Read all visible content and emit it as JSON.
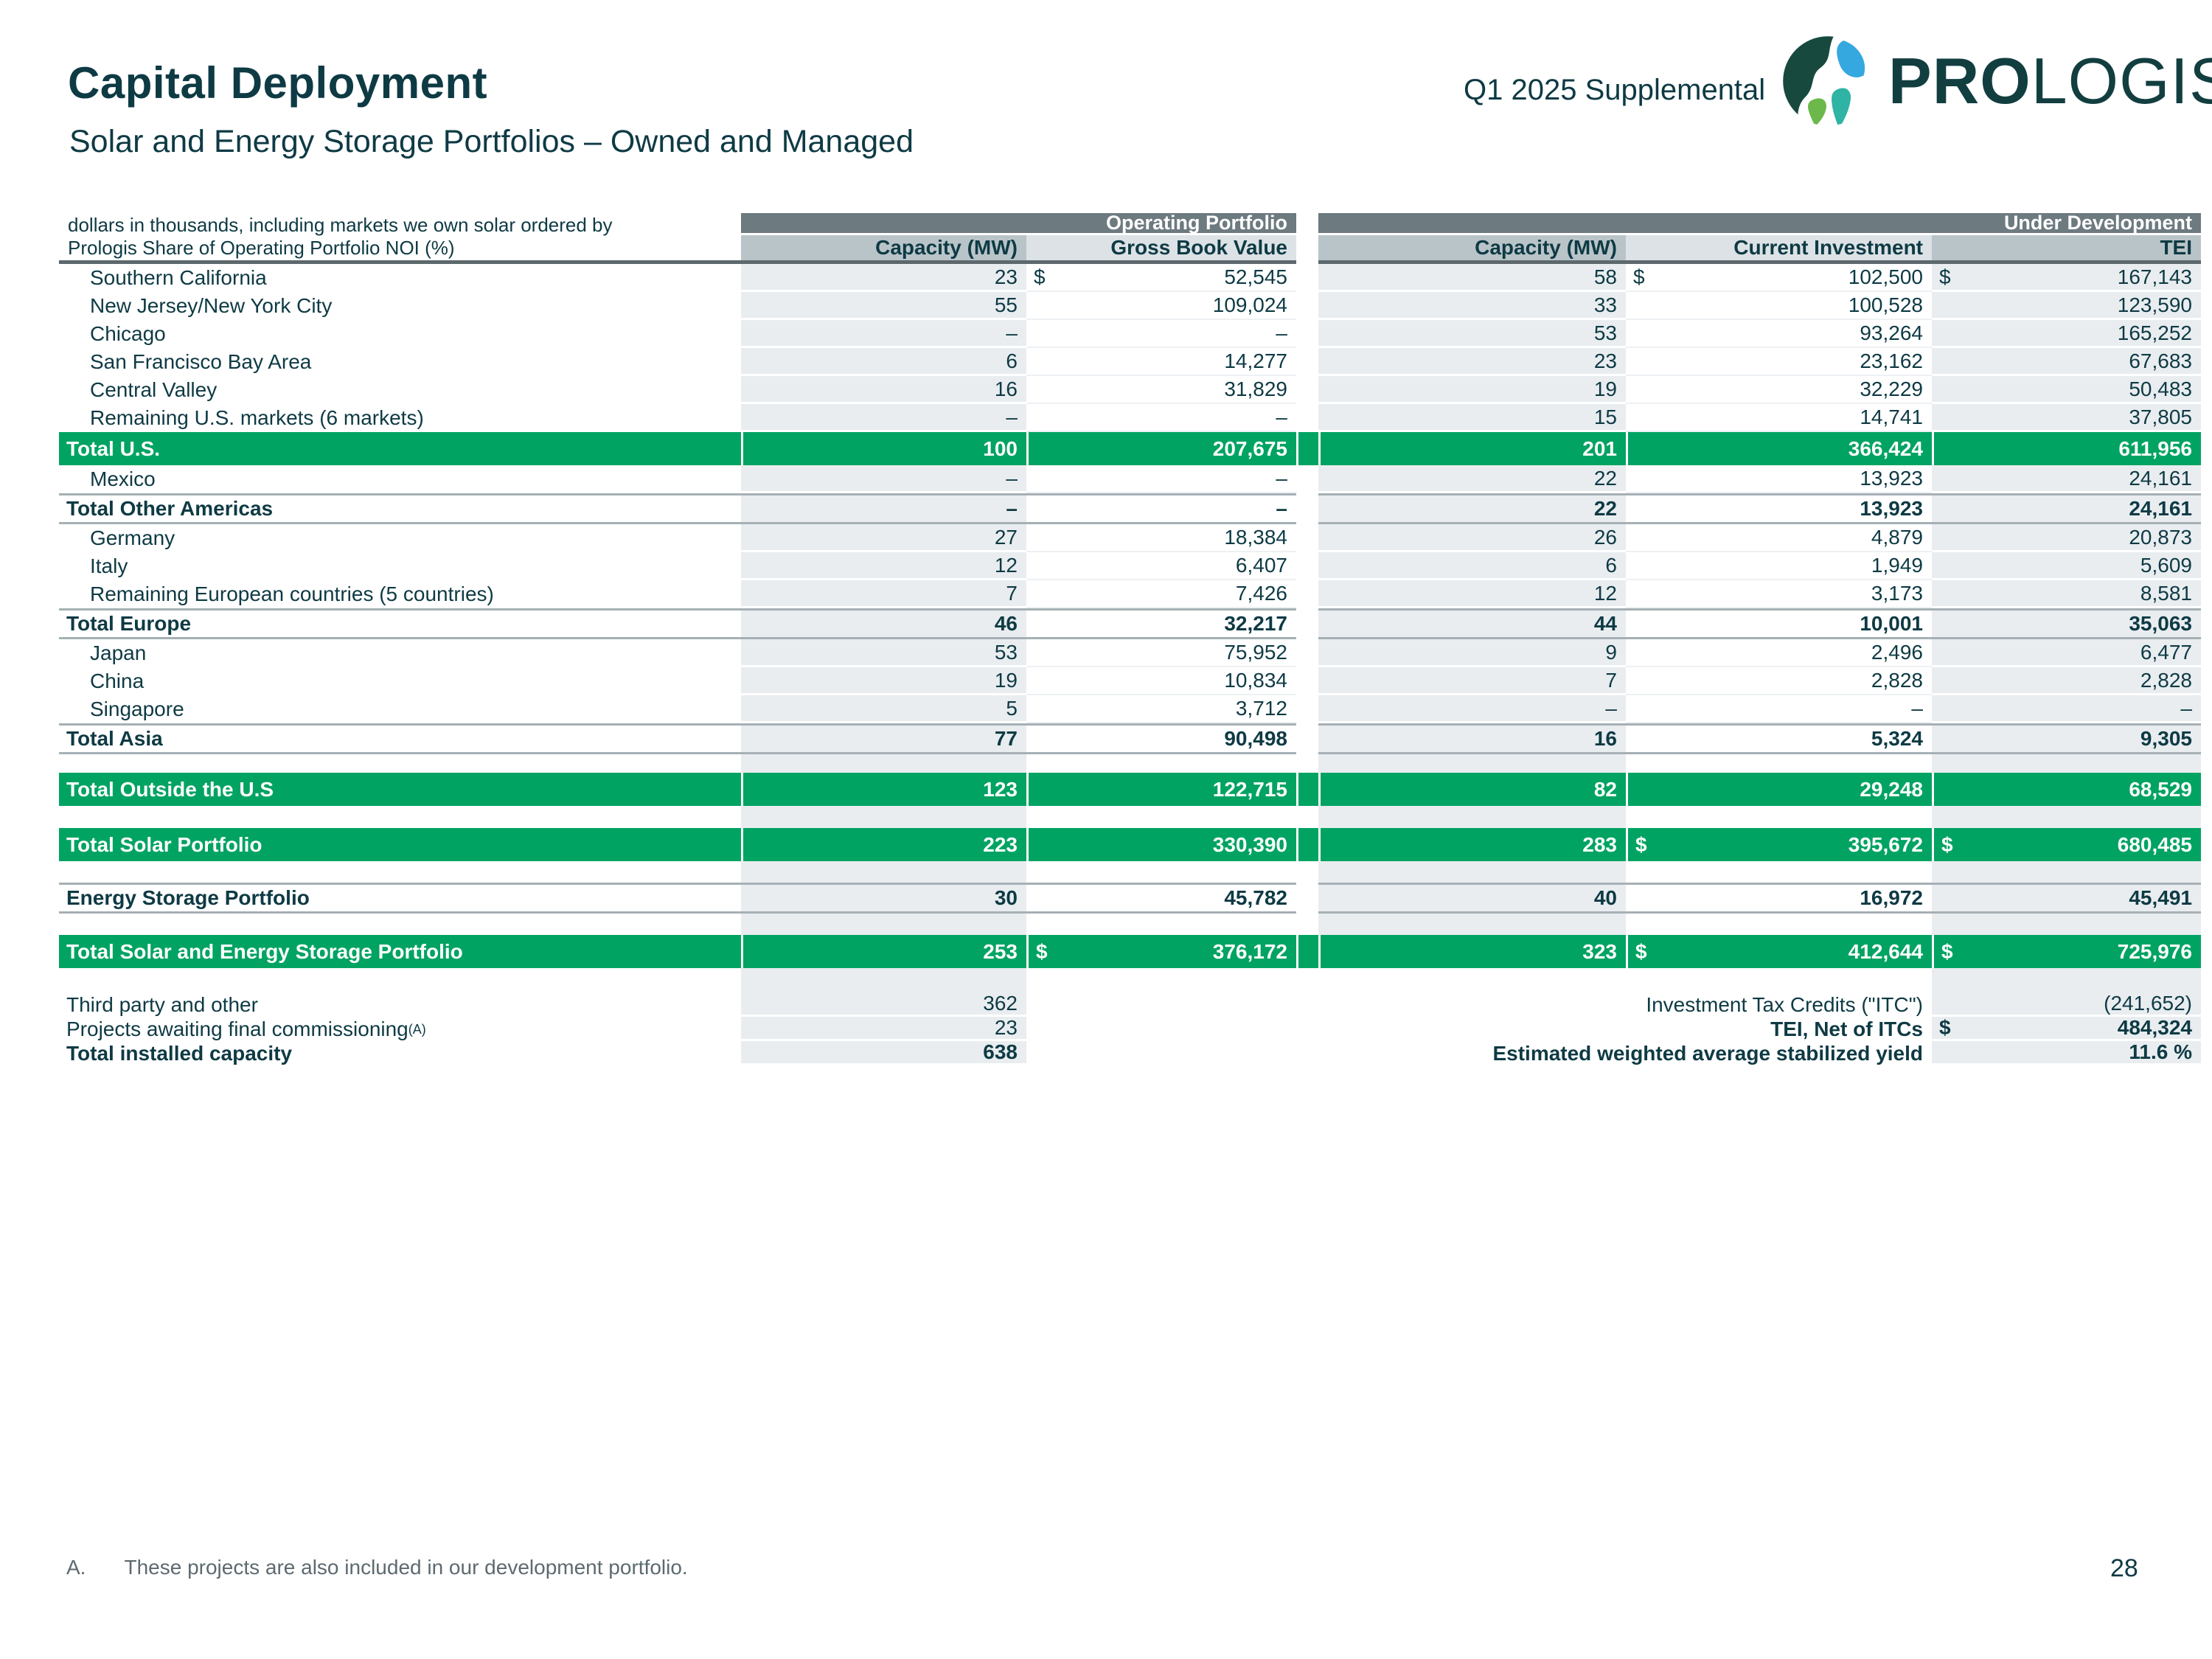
{
  "page": {
    "title": "Capital Deployment",
    "subtitle": "Solar and Energy Storage Portfolios – Owned and Managed",
    "edition": "Q1 2025 Supplemental",
    "brand": {
      "pro": "PRO",
      "logis": "LOGIS",
      "reg": "®"
    },
    "page_number": "28",
    "footnote_marker": "A.",
    "footnote_text": "These projects are also included in our development portfolio."
  },
  "colors": {
    "accent_green": "#00a362",
    "dark_teal_text": "#0e3a44",
    "group_band_gray": "#6d7a80",
    "subheader_gray": "#b9c4c9",
    "subheader_light": "#dce2e5",
    "column_shade": "#e9edf0",
    "rule_gray": "#a6b0b5",
    "logo_blue": "#35a8e0",
    "logo_green": "#6cb84a",
    "logo_teal": "#2fb3a4",
    "logo_dark": "#17493f"
  },
  "table": {
    "note_line1": "dollars in thousands, including markets we own solar ordered by",
    "note_line2": "Prologis Share of Operating Portfolio NOI (%)",
    "groups": [
      {
        "label": "Operating Portfolio"
      },
      {
        "label": "Under Development"
      }
    ],
    "columns": [
      "Capacity (MW)",
      "Gross Book Value",
      "Capacity (MW)",
      "Current Investment",
      "TEI"
    ],
    "rows": [
      {
        "type": "data",
        "label": "Southern California",
        "values": [
          "23",
          "52,545",
          "58",
          "102,500",
          "167,143"
        ],
        "dollars": [
          false,
          true,
          false,
          true,
          true
        ]
      },
      {
        "type": "data",
        "label": "New Jersey/New York City",
        "values": [
          "55",
          "109,024",
          "33",
          "100,528",
          "123,590"
        ]
      },
      {
        "type": "data",
        "label": "Chicago",
        "values": [
          "–",
          "–",
          "53",
          "93,264",
          "165,252"
        ]
      },
      {
        "type": "data",
        "label": "San Francisco Bay Area",
        "values": [
          "6",
          "14,277",
          "23",
          "23,162",
          "67,683"
        ]
      },
      {
        "type": "data",
        "label": "Central Valley",
        "values": [
          "16",
          "31,829",
          "19",
          "32,229",
          "50,483"
        ]
      },
      {
        "type": "data",
        "label": "Remaining U.S. markets (6 markets)",
        "values": [
          "–",
          "–",
          "15",
          "14,741",
          "37,805"
        ]
      },
      {
        "type": "total",
        "label": "Total U.S.",
        "values": [
          "100",
          "207,675",
          "201",
          "366,424",
          "611,956"
        ]
      },
      {
        "type": "data",
        "label": "Mexico",
        "values": [
          "–",
          "–",
          "22",
          "13,923",
          "24,161"
        ]
      },
      {
        "type": "subtotal",
        "label": "Total Other Americas",
        "values": [
          "–",
          "–",
          "22",
          "13,923",
          "24,161"
        ]
      },
      {
        "type": "data",
        "label": "Germany",
        "values": [
          "27",
          "18,384",
          "26",
          "4,879",
          "20,873"
        ]
      },
      {
        "type": "data",
        "label": "Italy",
        "values": [
          "12",
          "6,407",
          "6",
          "1,949",
          "5,609"
        ]
      },
      {
        "type": "data",
        "label": "Remaining European countries (5 countries)",
        "values": [
          "7",
          "7,426",
          "12",
          "3,173",
          "8,581"
        ]
      },
      {
        "type": "subtotal",
        "label": "Total Europe",
        "values": [
          "46",
          "32,217",
          "44",
          "10,001",
          "35,063"
        ]
      },
      {
        "type": "data",
        "label": "Japan",
        "values": [
          "53",
          "75,952",
          "9",
          "2,496",
          "6,477"
        ]
      },
      {
        "type": "data",
        "label": "China",
        "values": [
          "19",
          "10,834",
          "7",
          "2,828",
          "2,828"
        ]
      },
      {
        "type": "data",
        "label": "Singapore",
        "values": [
          "5",
          "3,712",
          "–",
          "–",
          "–"
        ]
      },
      {
        "type": "subtotal",
        "label": "Total Asia",
        "values": [
          "77",
          "90,498",
          "16",
          "5,324",
          "9,305"
        ]
      },
      {
        "type": "spacer",
        "height": 25
      },
      {
        "type": "total",
        "label": "Total Outside the U.S",
        "values": [
          "123",
          "122,715",
          "82",
          "29,248",
          "68,529"
        ]
      },
      {
        "type": "spacer",
        "height": 30
      },
      {
        "type": "total",
        "label": "Total Solar Portfolio",
        "values": [
          "223",
          "330,390",
          "283",
          "395,672",
          "680,485"
        ],
        "dollars": [
          false,
          false,
          false,
          true,
          true
        ]
      },
      {
        "type": "spacer",
        "height": 29
      },
      {
        "type": "subtotal",
        "label": "Energy Storage Portfolio",
        "values": [
          "30",
          "45,782",
          "40",
          "16,972",
          "45,491"
        ]
      },
      {
        "type": "spacer",
        "height": 29
      },
      {
        "type": "total",
        "label": "Total Solar and Energy Storage Portfolio",
        "values": [
          "253",
          "376,172",
          "323",
          "412,644",
          "725,976"
        ],
        "dollars": [
          false,
          true,
          false,
          true,
          true
        ]
      },
      {
        "type": "spacer",
        "height": 33,
        "no_c3": true
      }
    ],
    "bottom_rows": [
      {
        "label": "Third party and other",
        "label_sup": "",
        "label_bold": false,
        "value": "362",
        "value_bold": false,
        "right_label": "Investment Tax Credits (\"ITC\")",
        "right_bold": false,
        "right_value": "(241,652)",
        "right_dollar": false
      },
      {
        "label": "Projects awaiting final commissioning",
        "label_sup": "(A)",
        "label_bold": false,
        "value": "23",
        "value_bold": false,
        "right_label": "TEI, Net of ITCs",
        "right_bold": true,
        "right_value": "484,324",
        "right_dollar": true
      },
      {
        "label": "Total installed capacity",
        "label_sup": "",
        "label_bold": true,
        "value": "638",
        "value_bold": true,
        "right_label": "Estimated weighted average stabilized yield",
        "right_bold": true,
        "right_value": "11.6 %",
        "right_dollar": false
      }
    ]
  }
}
